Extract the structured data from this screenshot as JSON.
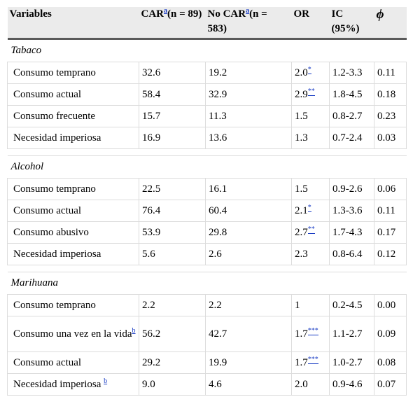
{
  "headers": {
    "variables": "Variables",
    "car": "CAR",
    "car_note": "a",
    "car_n": "(n = 89)",
    "nocar": "No CAR",
    "nocar_note": "a",
    "nocar_n": "(n = 583)",
    "or": "OR",
    "ic": "IC (95%)",
    "phi": "ϕ"
  },
  "sections": [
    {
      "title": "Tabaco",
      "rows": [
        {
          "variable": "Consumo temprano",
          "car": "32.6",
          "nocar": "19.2",
          "or": "2.0",
          "or_mark": "*",
          "ic": "1.2-3.3",
          "phi": "0.11"
        },
        {
          "variable": "Consumo actual",
          "car": "58.4",
          "nocar": "32.9",
          "or": "2.9",
          "or_mark": "**",
          "ic": "1.8-4.5",
          "phi": "0.18"
        },
        {
          "variable": "Consumo frecuente",
          "car": "15.7",
          "nocar": "11.3",
          "or": "1.5",
          "ic": "0.8-2.7",
          "phi": "0.23"
        },
        {
          "variable": "Necesidad imperiosa",
          "car": "16.9",
          "nocar": "13.6",
          "or": "1.3",
          "ic": "0.7-2.4",
          "phi": "0.03"
        }
      ]
    },
    {
      "title": "Alcohol",
      "rows": [
        {
          "variable": "Consumo temprano",
          "car": "22.5",
          "nocar": "16.1",
          "or": "1.5",
          "ic": "0.9-2.6",
          "phi": "0.06"
        },
        {
          "variable": "Consumo actual",
          "car": "76.4",
          "nocar": "60.4",
          "or": "2.1",
          "or_mark": "*",
          "ic": "1.3-3.6",
          "phi": "0.11"
        },
        {
          "variable": "Consumo abusivo",
          "car": "53.9",
          "nocar": "29.8",
          "or": "2.7",
          "or_mark": "**",
          "ic": "1.7-4.3",
          "phi": "0.17"
        },
        {
          "variable": "Necesidad imperiosa",
          "car": "5.6",
          "nocar": "2.6",
          "or": "2.3",
          "ic": "0.8-6.4",
          "phi": "0.12"
        }
      ]
    },
    {
      "title": "Marihuana",
      "rows": [
        {
          "variable": "Consumo temprano",
          "car": "2.2",
          "nocar": "2.2",
          "or": "1",
          "ic": "0.2-4.5",
          "phi": "0.00"
        },
        {
          "variable": "Consumo una vez en la vida",
          "var_note": "b",
          "car": "56.2",
          "nocar": "42.7",
          "or": "1.7",
          "or_mark": "***",
          "ic": "1.1-2.7",
          "phi": "0.09"
        },
        {
          "variable": "Consumo actual",
          "car": "29.2",
          "nocar": "19.9",
          "or": "1.7",
          "or_mark": "***",
          "ic": "1.0-2.7",
          "phi": "0.08"
        },
        {
          "variable": "Necesidad imperiosa ",
          "var_note": "b",
          "car": "9.0",
          "nocar": "4.6",
          "or": "2.0",
          "ic": "0.9-4.6",
          "phi": "0.07"
        }
      ]
    }
  ]
}
